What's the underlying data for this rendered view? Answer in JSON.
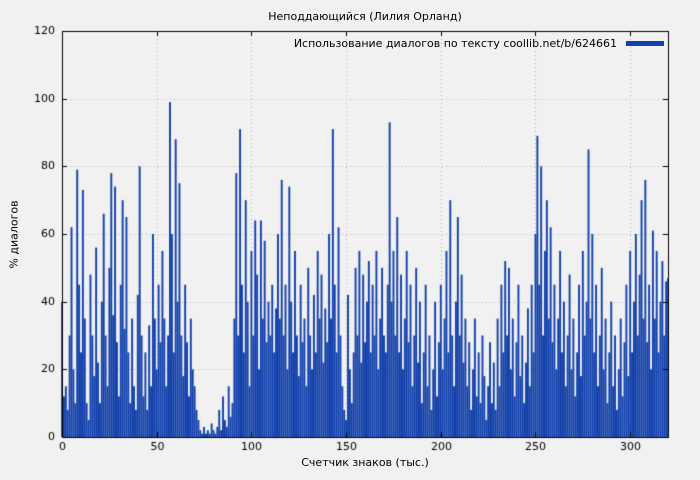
{
  "chart_data": {
    "type": "bar",
    "style": "impulses",
    "title": "Неподдающийся (Лилия Орланд)",
    "xlabel": "Счетчик знаков (тыс.)",
    "ylabel": "% диалогов",
    "xlim": [
      0,
      320
    ],
    "ylim": [
      0,
      120
    ],
    "x_ticks": [
      0,
      50,
      100,
      150,
      200,
      250,
      300
    ],
    "y_ticks": [
      0,
      20,
      40,
      60,
      80,
      100,
      120
    ],
    "grid": true,
    "legend": {
      "label": "Использование диалогов по тексту coollib.net/b/624661",
      "position": "top-right"
    },
    "colors": {
      "bar": "#1240ab",
      "background": "#f1f1f1",
      "grid": "#b4b4b4",
      "axis": "#000000"
    },
    "x_start": 0,
    "x_step": 1,
    "values": [
      40,
      12,
      15,
      8,
      30,
      62,
      20,
      10,
      79,
      45,
      25,
      73,
      35,
      10,
      5,
      48,
      30,
      18,
      56,
      22,
      10,
      40,
      66,
      30,
      15,
      50,
      78,
      36,
      74,
      28,
      12,
      45,
      70,
      32,
      65,
      25,
      10,
      35,
      15,
      8,
      42,
      80,
      30,
      12,
      25,
      8,
      33,
      15,
      60,
      35,
      20,
      45,
      28,
      55,
      35,
      15,
      30,
      99,
      60,
      25,
      88,
      40,
      75,
      30,
      18,
      45,
      28,
      12,
      35,
      20,
      15,
      8,
      5,
      2,
      1,
      3,
      1,
      2,
      1,
      4,
      2,
      1,
      3,
      8,
      2,
      12,
      5,
      3,
      15,
      6,
      10,
      35,
      78,
      30,
      91,
      45,
      25,
      70,
      40,
      15,
      55,
      30,
      64,
      48,
      20,
      64,
      35,
      58,
      28,
      40,
      30,
      45,
      25,
      38,
      60,
      35,
      76,
      30,
      45,
      20,
      74,
      40,
      25,
      55,
      30,
      18,
      45,
      28,
      35,
      15,
      50,
      30,
      20,
      42,
      25,
      55,
      35,
      48,
      22,
      38,
      28,
      60,
      35,
      91,
      45,
      25,
      62,
      30,
      15,
      8,
      5,
      42,
      20,
      10,
      25,
      50,
      30,
      55,
      22,
      48,
      28,
      40,
      52,
      25,
      45,
      30,
      55,
      20,
      35,
      50,
      30,
      25,
      45,
      93,
      40,
      55,
      30,
      65,
      25,
      48,
      20,
      35,
      55,
      28,
      45,
      15,
      30,
      50,
      22,
      40,
      10,
      25,
      45,
      15,
      30,
      8,
      20,
      40,
      12,
      28,
      45,
      20,
      35,
      55,
      25,
      70,
      30,
      15,
      40,
      65,
      30,
      48,
      22,
      35,
      15,
      28,
      8,
      20,
      35,
      12,
      25,
      10,
      30,
      18,
      5,
      15,
      28,
      10,
      22,
      8,
      35,
      15,
      45,
      25,
      52,
      30,
      50,
      20,
      35,
      12,
      28,
      45,
      18,
      30,
      10,
      22,
      38,
      15,
      45,
      25,
      60,
      89,
      45,
      80,
      30,
      55,
      70,
      35,
      62,
      28,
      45,
      20,
      35,
      55,
      25,
      40,
      15,
      30,
      48,
      20,
      35,
      12,
      25,
      45,
      18,
      55,
      30,
      40,
      85,
      35,
      60,
      25,
      45,
      15,
      30,
      50,
      20,
      35,
      10,
      25,
      40,
      15,
      30,
      8,
      20,
      35,
      12,
      28,
      45,
      18,
      55,
      25,
      40,
      60,
      30,
      48,
      70,
      35,
      76,
      28,
      45,
      20,
      61,
      35,
      55,
      25,
      40,
      52,
      30,
      46,
      47
    ]
  }
}
